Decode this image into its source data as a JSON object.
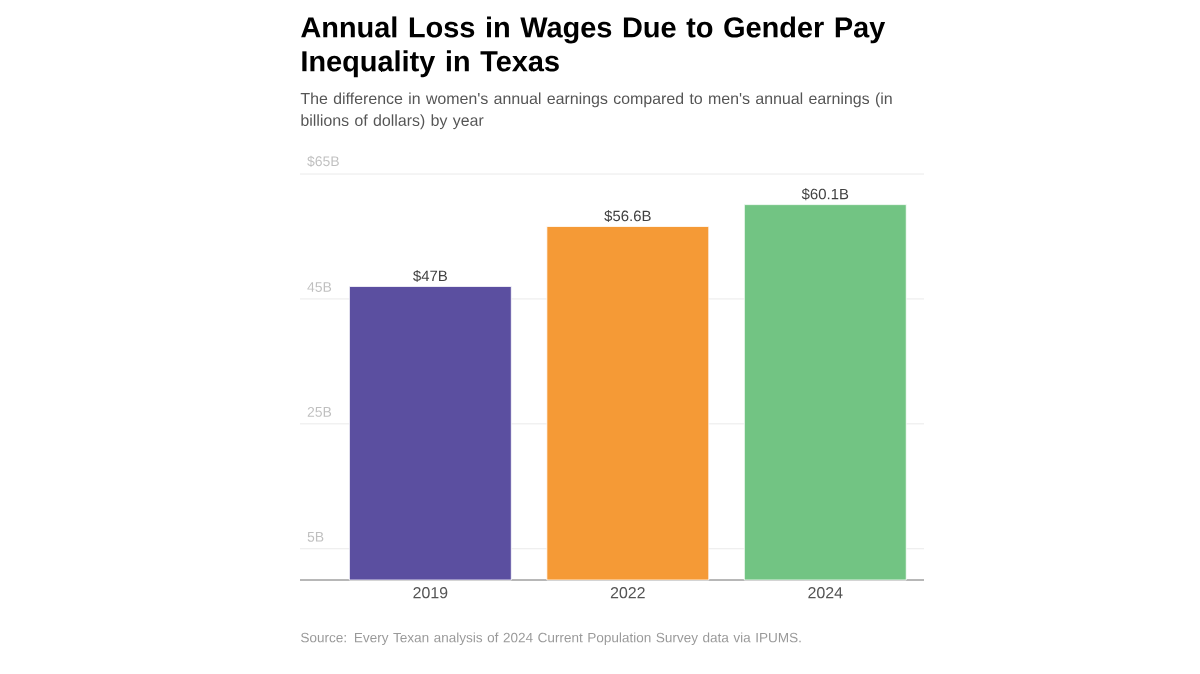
{
  "chart_data": {
    "type": "bar",
    "title": "Annual Loss in Wages Due to Gender Pay Inequality in Texas",
    "subtitle": "The difference in women's annual earnings compared to men's annual earnings (in billions of dollars) by year",
    "categories": [
      "2019",
      "2022",
      "2024"
    ],
    "values": [
      47,
      56.6,
      60.1
    ],
    "value_labels": [
      "$47B",
      "$56.6B",
      "$60.1B"
    ],
    "colors": [
      "#5b4fa0",
      "#f59a36",
      "#72c483"
    ],
    "ylim": [
      0,
      65
    ],
    "yticks": [
      {
        "value": 5,
        "label": "5B"
      },
      {
        "value": 25,
        "label": "25B"
      },
      {
        "value": 45,
        "label": "45B"
      },
      {
        "value": 65,
        "label": "$65B"
      }
    ],
    "grid": "y",
    "annotations": [
      "Source: Every Texan analysis of 2024 Current Population Survey data via IPUMS."
    ]
  }
}
